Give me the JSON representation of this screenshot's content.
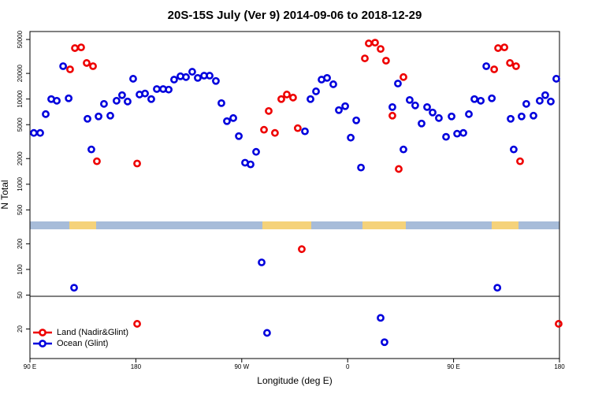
{
  "chart_data": {
    "type": "scatter",
    "title": "20S-15S July (Ver 9)   2014-09-06 to 2018-12-29",
    "x_label": "Longitude (deg E)",
    "y_label": "N Total",
    "log_y": true,
    "legend": "bottom-left",
    "xlim": [
      90,
      540
    ],
    "xticks": [
      {
        "value": 90,
        "label": "90 E"
      },
      {
        "value": 180,
        "label": "180"
      },
      {
        "value": 270,
        "label": "90 W"
      },
      {
        "value": 360,
        "label": "0"
      },
      {
        "value": 450,
        "label": "90 E"
      },
      {
        "value": 540,
        "label": "180"
      }
    ],
    "ylim": [
      9,
      62000
    ],
    "yticks": [
      20,
      50,
      100,
      200,
      500,
      1000,
      2000,
      5000,
      10000,
      20000,
      50000
    ],
    "series": [
      {
        "name": "Land (Nadir&Glint)",
        "color": "#ee0000",
        "x": [
          124.1,
          128.2,
          133.5,
          138.2,
          143.6,
          146.9,
          181.1,
          181.1,
          288.9,
          292.9,
          298.2,
          303.6,
          308.3,
          313.6,
          317.6,
          321,
          374.6,
          377.9,
          383.3,
          388,
          392.6,
          398,
          403.4,
          407.4,
          484.5,
          487.8,
          493.2,
          497.9,
          503.1,
          506.5,
          539.3
        ],
        "values": [
          22300,
          39600,
          40400,
          26500,
          24300,
          1860,
          1750,
          23,
          4360,
          7240,
          4000,
          9980,
          11300,
          10400,
          4550,
          173,
          30000,
          45000,
          45900,
          38700,
          28200,
          6380,
          1510,
          18100,
          22300,
          39600,
          40400,
          26500,
          24300,
          1860,
          23
        ]
      },
      {
        "name": "Ocean (Glint)",
        "color": "#0000dd",
        "x": [
          93.3,
          98.7,
          103.4,
          108.1,
          112.8,
          118.2,
          122.9,
          127.5,
          138.9,
          142.2,
          148.3,
          152.9,
          158.3,
          163.6,
          168.3,
          173,
          177.7,
          183.1,
          187.8,
          193.1,
          197.8,
          203.2,
          207.9,
          212.5,
          217.9,
          222.6,
          227.9,
          232.6,
          238,
          242.7,
          248,
          252.7,
          257.4,
          262.8,
          267.5,
          272.8,
          277.5,
          282.2,
          286.9,
          291.5,
          323.7,
          328.4,
          333.1,
          337.8,
          342.5,
          347.8,
          352.5,
          357.9,
          362.6,
          367.3,
          371.3,
          388,
          391.3,
          398,
          402.7,
          407.4,
          412.7,
          417.4,
          422.8,
          427.5,
          432.2,
          437.5,
          443.6,
          448.3,
          453,
          458.3,
          463,
          467.7,
          473.1,
          477.8,
          482.5,
          487.2,
          498.5,
          501.1,
          507.8,
          511.8,
          517.9,
          523.2,
          527.9,
          532.6,
          537.3
        ],
        "values": [
          4000,
          4000,
          6650,
          9980,
          9550,
          24300,
          10200,
          61,
          5860,
          2560,
          6250,
          8770,
          6380,
          9550,
          11100,
          9350,
          17300,
          11300,
          11600,
          9980,
          13100,
          13100,
          12900,
          16900,
          18500,
          18100,
          20900,
          17700,
          18800,
          18800,
          16300,
          8950,
          5500,
          5980,
          3670,
          1790,
          1710,
          2400,
          121,
          18,
          4180,
          9980,
          12300,
          16900,
          17700,
          14900,
          7410,
          8240,
          3520,
          5620,
          1570,
          27,
          14,
          8050,
          15200,
          2560,
          9750,
          8410,
          5160,
          8050,
          6950,
          5980,
          3600,
          6250,
          3920,
          4000,
          6650,
          9980,
          9550,
          24300,
          10200,
          61,
          5860,
          2560,
          6250,
          8770,
          6380,
          9550,
          11100,
          9350,
          17300
        ]
      }
    ]
  }
}
